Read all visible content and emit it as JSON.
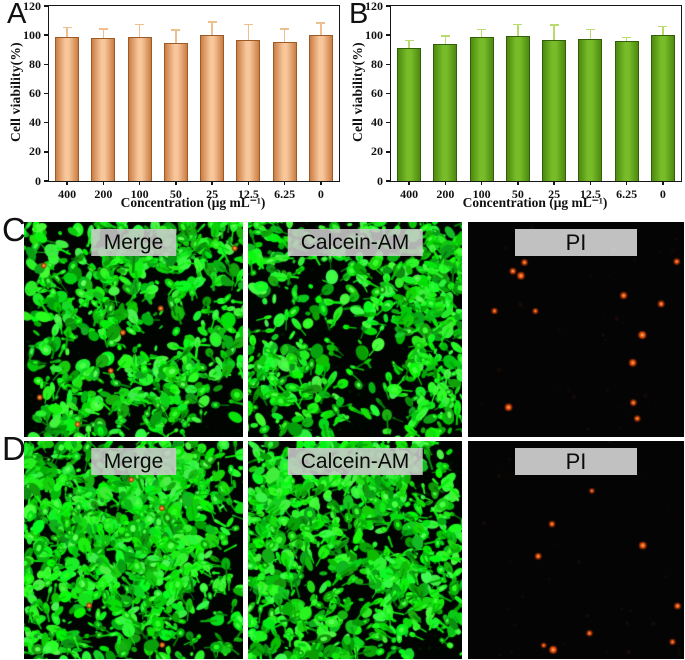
{
  "figure": {
    "panel_letters": {
      "a": "A",
      "b": "B",
      "c": "C",
      "d": "D"
    }
  },
  "chart_data": [
    {
      "type": "bar",
      "panel": "A",
      "title": "",
      "categories": [
        "400",
        "200",
        "100",
        "50",
        "25",
        "12.5",
        "6.25",
        "0"
      ],
      "values": [
        98.5,
        98,
        99,
        94.5,
        100,
        97,
        95.5,
        100
      ],
      "errors": [
        7,
        6.5,
        8.5,
        9,
        9,
        10.5,
        9,
        8.5
      ],
      "xlabel": "Concentration (μg mL⁻¹)",
      "ylabel": "Cell viability(%)",
      "ylim": [
        0,
        120
      ],
      "yticks": [
        0,
        20,
        40,
        60,
        80,
        100,
        120
      ],
      "grid": false,
      "legend": null,
      "colors": {
        "bar_edge_shade": "#cb7e45",
        "bar_center": "#f7c69a",
        "bar_border": "#9b5a26",
        "error": "#eec08f",
        "axis": "#161616"
      }
    },
    {
      "type": "bar",
      "panel": "B",
      "title": "",
      "categories": [
        "400",
        "200",
        "100",
        "50",
        "25",
        "12.5",
        "6.25",
        "0"
      ],
      "values": [
        91,
        94,
        99,
        99.5,
        97,
        97.5,
        96,
        100
      ],
      "errors": [
        5.5,
        5.5,
        5,
        8,
        10,
        6.5,
        2.5,
        6
      ],
      "xlabel": "Concentration (μg mL⁻¹)",
      "ylabel": "Cell viability(%)",
      "ylim": [
        0,
        120
      ],
      "yticks": [
        0,
        20,
        40,
        60,
        80,
        100,
        120
      ],
      "grid": false,
      "legend": null,
      "colors": {
        "bar_edge_shade": "#4e8a10",
        "bar_center": "#78bd29",
        "bar_border": "#335f0a",
        "error": "#b9da6e",
        "axis": "#161616"
      }
    }
  ],
  "micrographs": {
    "rows": [
      {
        "letter": "C",
        "panels": [
          {
            "label": "Merge",
            "kind": "cells",
            "confluency": "moderate",
            "red_dots": 7
          },
          {
            "label": "Calcein-AM",
            "kind": "cells",
            "confluency": "moderate",
            "red_dots": 0
          },
          {
            "label": "PI",
            "kind": "dots",
            "red_dots": 14
          }
        ]
      },
      {
        "letter": "D",
        "panels": [
          {
            "label": "Merge",
            "kind": "cells",
            "confluency": "dense",
            "red_dots": 4
          },
          {
            "label": "Calcein-AM",
            "kind": "cells",
            "confluency": "dense",
            "red_dots": 0
          },
          {
            "label": "PI",
            "kind": "dots",
            "red_dots": 9
          }
        ]
      }
    ],
    "colors": {
      "live_green": "#27e427",
      "dead_red": "#f05510",
      "label_bg": "#cbcbcb",
      "label_text": "#0b0b0b",
      "background": "#000000"
    }
  }
}
